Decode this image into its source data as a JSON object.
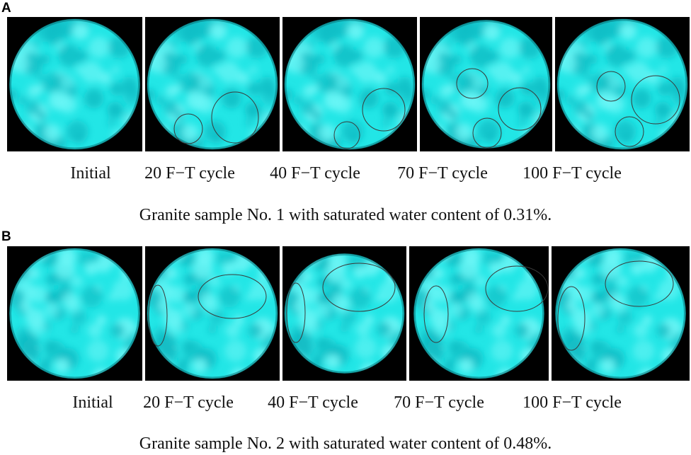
{
  "panel_a": {
    "letter": "A",
    "labels": [
      "Initial",
      "20 F−T cycle",
      "40 F−T cycle",
      "70 F−T cycle",
      "100 F−T cycle"
    ],
    "caption": "Granite sample No. 1 with saturated water content of 0.31%."
  },
  "panel_b": {
    "letter": "B",
    "labels": [
      "Initial",
      "20 F−T cycle",
      "40 F−T cycle",
      "70 F−T cycle",
      "100 F−T cycle"
    ],
    "caption": "Granite sample No. 2 with saturated water content of 0.48%."
  },
  "colors": {
    "disc": "#22e6e6",
    "disc_dark": "#12bcc4",
    "disc_light": "#6ef6f6",
    "background": "#000000",
    "ellipse_stroke": "#3a3a3a"
  }
}
